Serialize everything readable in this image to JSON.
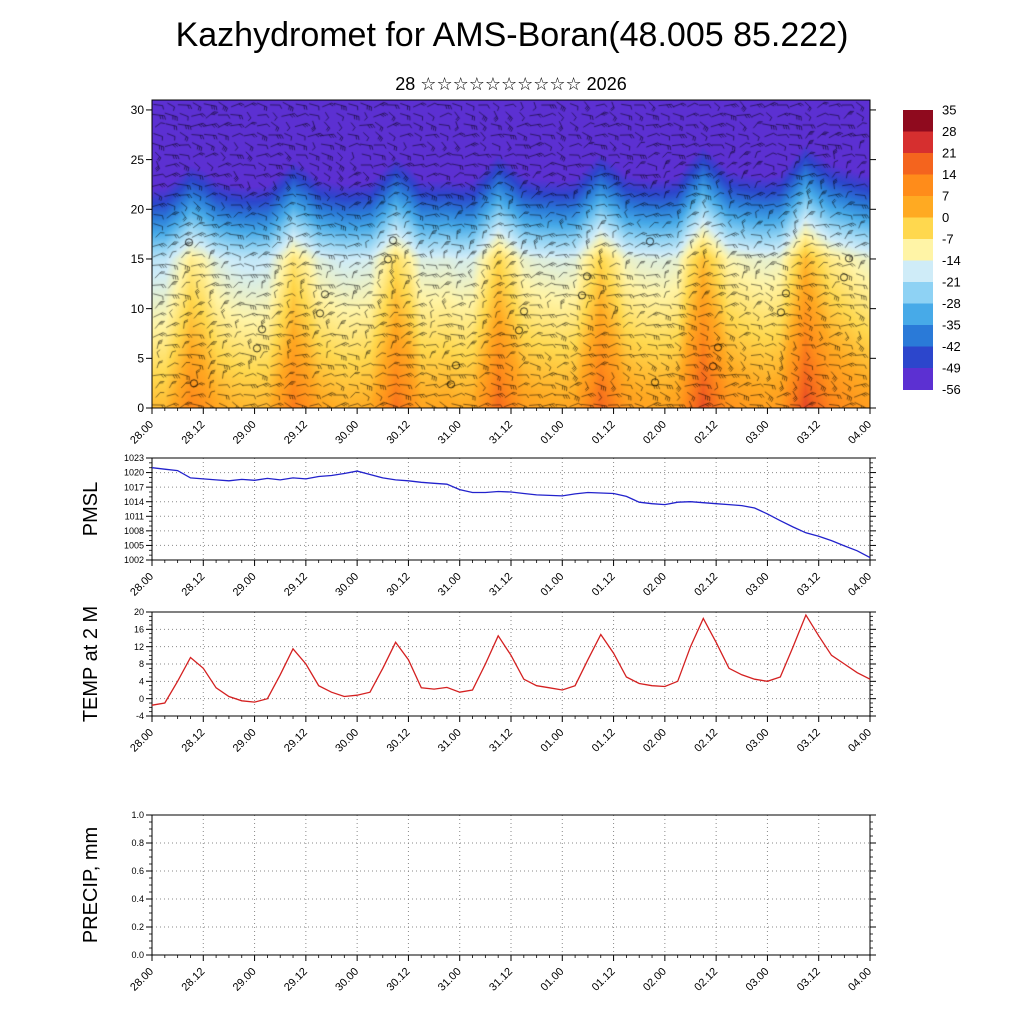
{
  "title": "Kazhydromet for AMS-Boran(48.005 85.222)",
  "subtitle": "28 ☆☆☆☆☆☆☆☆☆☆ 2026",
  "x_axis": {
    "tick_labels": [
      "28.00",
      "28.12",
      "29.00",
      "29.12",
      "30.00",
      "30.12",
      "31.00",
      "31.12",
      "01.00",
      "01.12",
      "02.00",
      "02.12",
      "03.00",
      "03.12",
      "04.00"
    ],
    "total_hours": 168,
    "major_step_hours": 12,
    "minor_step_hours": 3
  },
  "colorbar": {
    "labels": [
      "35",
      "28",
      "21",
      "14",
      "7",
      "0",
      "-7",
      "-14",
      "-21",
      "-28",
      "-35",
      "-42",
      "-49",
      "-56"
    ],
    "colors": [
      "#8f0a1e",
      "#d62f2f",
      "#f4641e",
      "#ff8c1a",
      "#ffaa22",
      "#ffd84e",
      "#fff4a6",
      "#cfecf8",
      "#8ed2f4",
      "#47aae8",
      "#2a7ad8",
      "#2c46cc",
      "#5c30d2"
    ]
  },
  "chart_data": [
    {
      "type": "heatmap",
      "name": "time-height temperature and wind section",
      "ylim": [
        0,
        31
      ],
      "yticks": [
        0,
        5,
        10,
        15,
        20,
        25,
        30
      ],
      "levels": [
        35,
        28,
        21,
        14,
        7,
        0,
        -7,
        -14,
        -21,
        -28,
        -35,
        -42,
        -49,
        -56
      ],
      "surface_offset": 2,
      "lapse_low": 1.35,
      "lapse_break": 15,
      "lapse_high": 4.6,
      "overlay": "wind-barbs"
    },
    {
      "type": "line",
      "label": "PMSL",
      "color": "#2222cc",
      "ylim": [
        1002,
        1023
      ],
      "yticks": [
        1002,
        1005,
        1008,
        1011,
        1014,
        1017,
        1020,
        1023
      ],
      "x_step_hours": 3,
      "values": [
        1021,
        1020.7,
        1020.4,
        1018.9,
        1018.7,
        1018.5,
        1018.3,
        1018.6,
        1018.4,
        1018.8,
        1018.5,
        1018.9,
        1018.7,
        1019.2,
        1019.4,
        1019.8,
        1020.3,
        1019.6,
        1018.9,
        1018.5,
        1018.3,
        1018.0,
        1017.8,
        1017.6,
        1016.5,
        1015.9,
        1015.9,
        1016.1,
        1016.0,
        1015.7,
        1015.4,
        1015.3,
        1015.2,
        1015.6,
        1015.9,
        1015.8,
        1015.7,
        1015.1,
        1013.9,
        1013.6,
        1013.4,
        1013.9,
        1014.0,
        1013.8,
        1013.6,
        1013.4,
        1013.2,
        1012.7,
        1011.5,
        1010.1,
        1008.8,
        1007.6,
        1006.9,
        1006.0,
        1004.9,
        1003.9,
        1002.5
      ]
    },
    {
      "type": "line",
      "label": "TEMP at 2 M",
      "color": "#d42020",
      "ylim": [
        -4,
        20
      ],
      "yticks": [
        -4,
        0,
        4,
        8,
        12,
        16,
        20
      ],
      "x_step_hours": 3,
      "values": [
        -1.5,
        -1.0,
        4.0,
        9.5,
        7.0,
        2.5,
        0.5,
        -0.5,
        -0.8,
        0.0,
        5.5,
        11.5,
        8.0,
        3.0,
        1.5,
        0.5,
        0.8,
        1.5,
        7.0,
        13.0,
        9.0,
        2.5,
        2.2,
        2.6,
        1.5,
        2.0,
        8.0,
        14.5,
        10.0,
        4.5,
        3.0,
        2.5,
        2.0,
        3.0,
        9.0,
        14.8,
        10.5,
        5.0,
        3.5,
        3.0,
        2.8,
        4.0,
        12.0,
        18.5,
        13.0,
        7.0,
        5.5,
        4.5,
        4.0,
        5.0,
        12.0,
        19.3,
        14.5,
        10.0,
        8.0,
        6.0,
        4.5
      ]
    },
    {
      "type": "line",
      "label": "PRECIP, mm",
      "color": "#00aa00",
      "ylim": [
        0,
        1
      ],
      "yticks": [
        0,
        0.2,
        0.4,
        0.6,
        0.8,
        1.0
      ],
      "ytick_labels": [
        "0.0",
        "0.2",
        "0.4",
        "0.6",
        "0.8",
        "1.0"
      ],
      "x_step_hours": 3,
      "values": []
    }
  ]
}
